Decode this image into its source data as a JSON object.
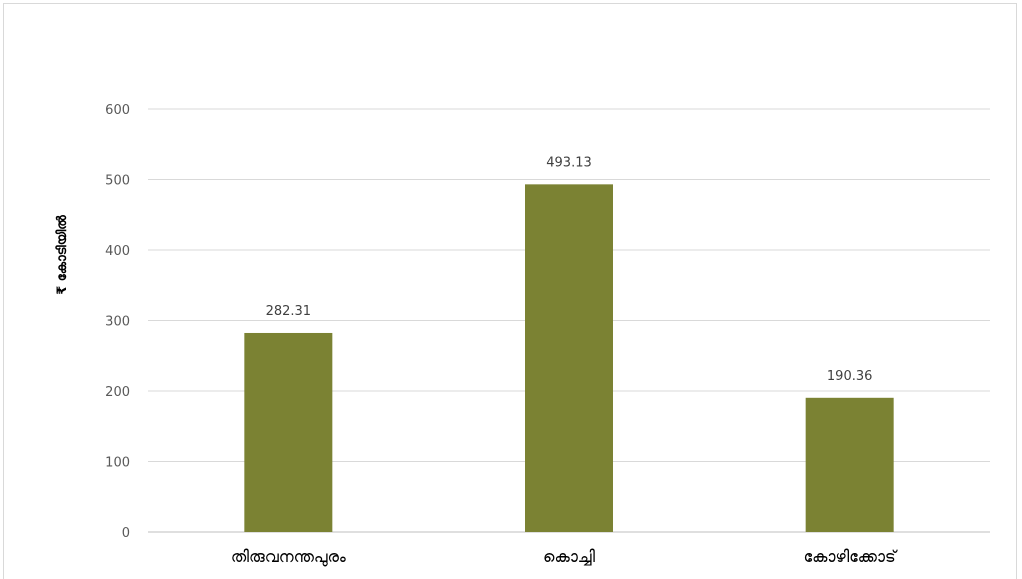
{
  "chart_data": {
    "type": "bar",
    "title": "",
    "xlabel": "",
    "ylabel": "₹ കോടിയിൽ",
    "categories": [
      "തിരുവനന്തപുരം",
      "കൊച്ചി",
      "കോഴിക്കോട്"
    ],
    "values": [
      282.31,
      493.13,
      190.36
    ],
    "data_labels": [
      "282.31",
      "493.13",
      "190.36"
    ],
    "ylim": [
      0,
      600
    ],
    "yticks": [
      0,
      100,
      200,
      300,
      400,
      500,
      600
    ],
    "grid": true,
    "legend": "none",
    "bar_color": "#7b8233"
  }
}
